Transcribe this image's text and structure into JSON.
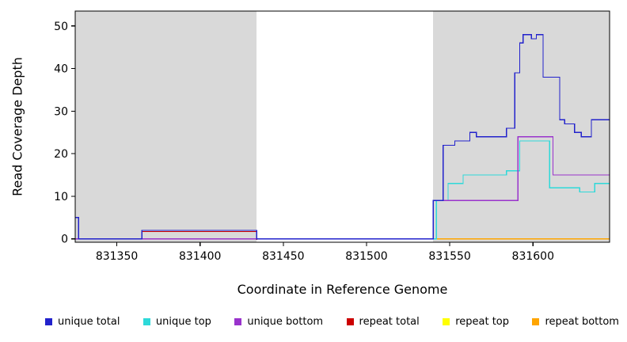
{
  "chart_data": {
    "type": "line",
    "subtype": "step",
    "title": "",
    "xlabel": "Coordinate in Reference Genome",
    "ylabel": "Read Coverage Depth",
    "xlim": [
      831325,
      831646
    ],
    "ylim": [
      0,
      50
    ],
    "xticks": [
      831350,
      831400,
      831450,
      831500,
      831550,
      831600
    ],
    "yticks": [
      0,
      10,
      20,
      30,
      40,
      50
    ],
    "grid": false,
    "legend_position": "bottom",
    "plot_bg": "#FFFFFF",
    "shaded_regions": {
      "color": "#D9D9D9",
      "ranges": [
        [
          831325,
          831434
        ],
        [
          831540,
          831646
        ]
      ]
    },
    "series": [
      {
        "name": "unique_total",
        "label": "unique total",
        "color": "#2222CC",
        "points": [
          [
            831325,
            5
          ],
          [
            831327,
            0
          ],
          [
            831365,
            2
          ],
          [
            831434,
            0
          ],
          [
            831540,
            9
          ],
          [
            831546,
            22
          ],
          [
            831553,
            23
          ],
          [
            831562,
            25
          ],
          [
            831566,
            24
          ],
          [
            831584,
            26
          ],
          [
            831589,
            39
          ],
          [
            831592,
            46
          ],
          [
            831594,
            48
          ],
          [
            831599,
            47
          ],
          [
            831602,
            48
          ],
          [
            831606,
            38
          ],
          [
            831616,
            28
          ],
          [
            831619,
            27
          ],
          [
            831625,
            25
          ],
          [
            831629,
            24
          ],
          [
            831635,
            28
          ]
        ]
      },
      {
        "name": "unique_top",
        "label": "unique top",
        "color": "#2ED9D9",
        "points": [
          [
            831325,
            0
          ],
          [
            831542,
            9
          ],
          [
            831549,
            13
          ],
          [
            831558,
            15
          ],
          [
            831584,
            16
          ],
          [
            831592,
            23
          ],
          [
            831610,
            12
          ],
          [
            831628,
            11
          ],
          [
            831637,
            13
          ]
        ]
      },
      {
        "name": "unique_bottom",
        "label": "unique bottom",
        "color": "#9933CC",
        "points": [
          [
            831325,
            0
          ],
          [
            831540,
            9
          ],
          [
            831591,
            24
          ],
          [
            831612,
            15
          ]
        ]
      },
      {
        "name": "repeat_total",
        "label": "repeat total",
        "color": "#CC0000",
        "points": [
          [
            831365,
            2
          ],
          [
            831434,
            0
          ]
        ],
        "xend": 831434
      },
      {
        "name": "repeat_top",
        "label": "repeat top",
        "color": "#FFFF00",
        "points": [
          [
            831325,
            0
          ]
        ]
      },
      {
        "name": "repeat_bottom",
        "label": "repeat bottom",
        "color": "#FFA500",
        "points": [
          [
            831540,
            0
          ]
        ]
      }
    ]
  }
}
